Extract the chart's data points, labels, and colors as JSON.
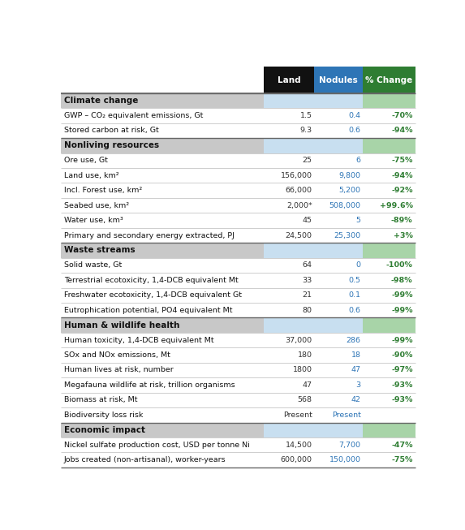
{
  "header": [
    "Land",
    "Nodules",
    "% Change"
  ],
  "sections": [
    {
      "title": "Climate change",
      "rows": [
        {
          "label": "GWP – CO₂ equivalent emissions, Gt",
          "land": "1.5",
          "nodules": "0.4",
          "change": "-70%"
        },
        {
          "label": "Stored carbon at risk, Gt",
          "land": "9.3",
          "nodules": "0.6",
          "change": "-94%"
        }
      ]
    },
    {
      "title": "Nonliving resources",
      "rows": [
        {
          "label": "Ore use, Gt",
          "land": "25",
          "nodules": "6",
          "change": "-75%"
        },
        {
          "label": "Land use, km²",
          "land": "156,000",
          "nodules": "9,800",
          "change": "-94%"
        },
        {
          "label": "Incl. Forest use, km²",
          "land": "66,000",
          "nodules": "5,200",
          "change": "-92%"
        },
        {
          "label": "Seabed use, km²",
          "land": "2,000*",
          "nodules": "508,000",
          "change": "+99.6%"
        },
        {
          "label": "Water use, km³",
          "land": "45",
          "nodules": "5",
          "change": "-89%"
        },
        {
          "label": "Primary and secondary energy extracted, PJ",
          "land": "24,500",
          "nodules": "25,300",
          "change": "+3%"
        }
      ]
    },
    {
      "title": "Waste streams",
      "rows": [
        {
          "label": "Solid waste, Gt",
          "land": "64",
          "nodules": "0",
          "change": "-100%"
        },
        {
          "label": "Terrestrial ecotoxicity, 1,4-DCB equivalent Mt",
          "land": "33",
          "nodules": "0.5",
          "change": "-98%"
        },
        {
          "label": "Freshwater ecotoxicity, 1,4-DCB equivalent Gt",
          "land": "21",
          "nodules": "0.1",
          "change": "-99%"
        },
        {
          "label": "Eutrophication potential, PO4 equivalent Mt",
          "land": "80",
          "nodules": "0.6",
          "change": "-99%"
        }
      ]
    },
    {
      "title": "Human & wildlife health",
      "rows": [
        {
          "label": "Human toxicity, 1,4-DCB equivalent Mt",
          "land": "37,000",
          "nodules": "286",
          "change": "-99%"
        },
        {
          "label": "SOx and NOx emissions, Mt",
          "land": "180",
          "nodules": "18",
          "change": "-90%"
        },
        {
          "label": "Human lives at risk, number",
          "land": "1800",
          "nodules": "47",
          "change": "-97%"
        },
        {
          "label": "Megafauna wildlife at risk, trillion organisms",
          "land": "47",
          "nodules": "3",
          "change": "-93%"
        },
        {
          "label": "Biomass at risk, Mt",
          "land": "568",
          "nodules": "42",
          "change": "-93%"
        },
        {
          "label": "Biodiversity loss risk",
          "land": "Present",
          "nodules": "Present",
          "change": ""
        }
      ]
    },
    {
      "title": "Economic impact",
      "rows": [
        {
          "label": "Nickel sulfate production cost, USD per tonne Ni",
          "land": "14,500",
          "nodules": "7,700",
          "change": "-47%"
        },
        {
          "label": "Jobs created (non-artisanal), worker-years",
          "land": "600,000",
          "nodules": "150,000",
          "change": "-75%"
        }
      ]
    }
  ],
  "header_bg_land": "#111111",
  "header_bg_nodules": "#2e75b6",
  "header_bg_change": "#2e7d32",
  "section_bg_label": "#c8c8c8",
  "section_bg_nodules": "#c8dff0",
  "section_bg_change": "#a8d4a8",
  "land_color": "#333333",
  "nodules_color": "#2e75b6",
  "change_color": "#2e7d32",
  "label_color": "#111111",
  "section_title_color": "#111111",
  "row_divider_color": "#bbbbbb",
  "section_divider_color": "#666666",
  "fig_width": 5.73,
  "fig_height": 6.53,
  "dpi": 100
}
